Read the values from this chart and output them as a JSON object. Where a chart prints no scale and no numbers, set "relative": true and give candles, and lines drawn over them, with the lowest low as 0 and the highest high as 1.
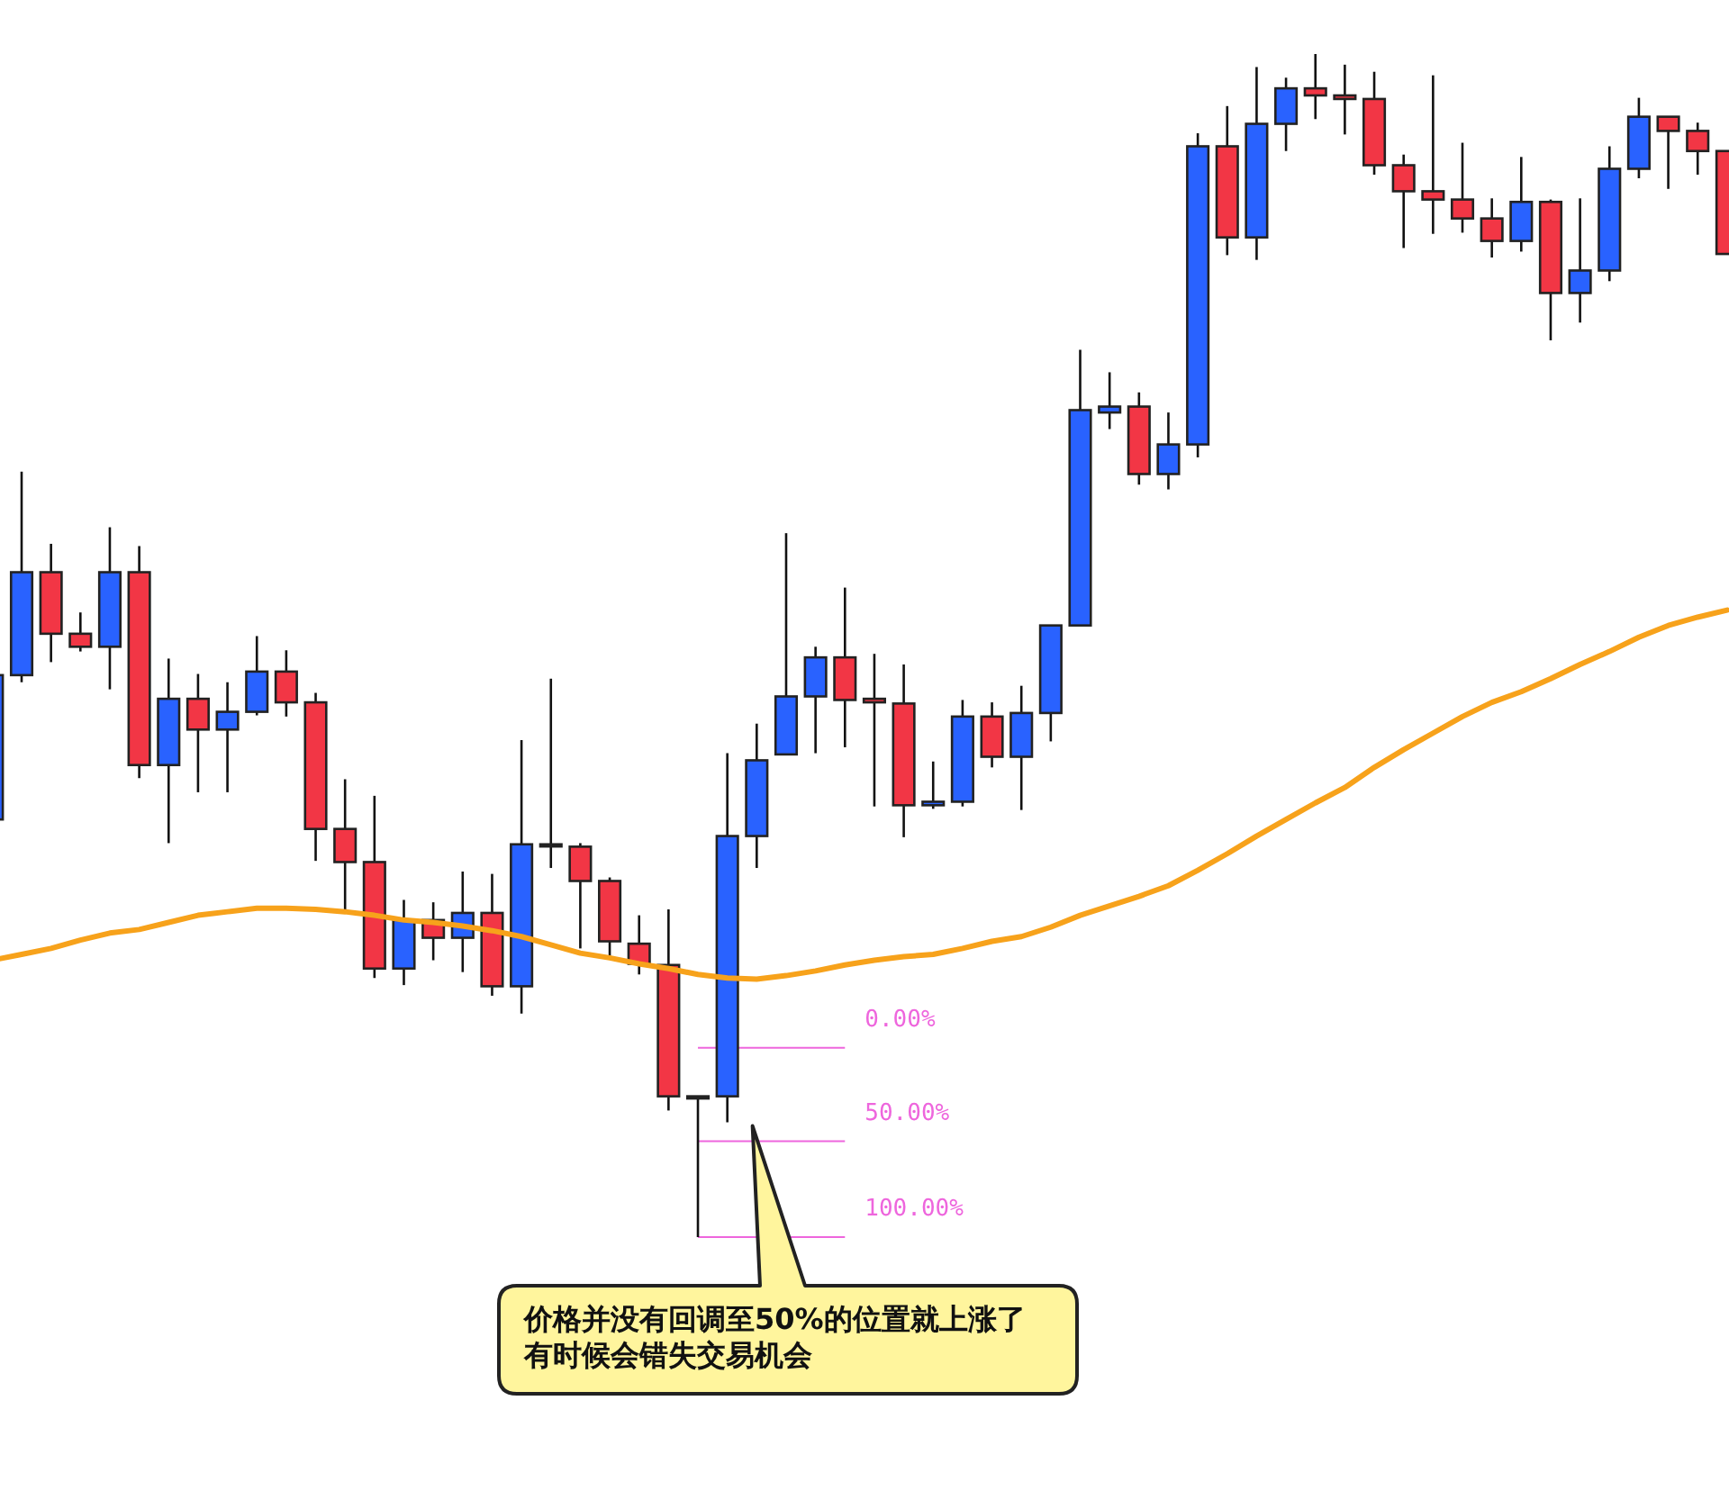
{
  "chart_data": {
    "type": "candlestick",
    "relative": true,
    "categories": [
      null,
      null,
      null,
      null,
      null,
      null,
      null,
      null,
      null,
      null,
      null,
      null,
      null,
      null,
      null,
      null,
      null,
      null,
      null,
      null,
      null,
      null,
      null,
      null,
      null,
      null,
      null,
      null,
      null,
      null,
      null,
      null,
      null,
      null,
      null,
      null,
      null,
      null,
      null,
      null,
      null,
      null,
      null,
      null,
      null,
      null,
      null,
      null,
      null,
      null,
      null,
      null,
      null,
      null,
      null,
      null,
      null,
      null,
      null,
      null
    ],
    "ohlc": [
      [
        0.353,
        0.475,
        0.353,
        0.475
      ],
      [
        0.475,
        0.647,
        0.469,
        0.562
      ],
      [
        0.562,
        0.586,
        0.486,
        0.51
      ],
      [
        0.51,
        0.528,
        0.495,
        0.499
      ],
      [
        0.499,
        0.6,
        0.463,
        0.562
      ],
      [
        0.562,
        0.584,
        0.388,
        0.399
      ],
      [
        0.399,
        0.489,
        0.333,
        0.455
      ],
      [
        0.455,
        0.476,
        0.376,
        0.429
      ],
      [
        0.429,
        0.469,
        0.376,
        0.444
      ],
      [
        0.444,
        0.508,
        0.441,
        0.478
      ],
      [
        0.478,
        0.496,
        0.44,
        0.452
      ],
      [
        0.452,
        0.46,
        0.318,
        0.345
      ],
      [
        0.345,
        0.387,
        0.274,
        0.317
      ],
      [
        0.317,
        0.373,
        0.219,
        0.227
      ],
      [
        0.227,
        0.285,
        0.213,
        0.268
      ],
      [
        0.268,
        0.283,
        0.234,
        0.253
      ],
      [
        0.253,
        0.309,
        0.224,
        0.274
      ],
      [
        0.274,
        0.307,
        0.204,
        0.212
      ],
      [
        0.212,
        0.42,
        0.189,
        0.332
      ],
      [
        0.332,
        0.472,
        0.312,
        0.332
      ],
      [
        0.33,
        0.333,
        0.244,
        0.301
      ],
      [
        0.301,
        0.304,
        0.236,
        0.25
      ],
      [
        0.248,
        0.272,
        0.222,
        0.231
      ],
      [
        0.23,
        0.277,
        0.107,
        0.119
      ],
      [
        0.119,
        0.119,
        0,
        0.119
      ],
      [
        0.119,
        0.409,
        0.097,
        0.339
      ],
      [
        0.339,
        0.434,
        0.312,
        0.403
      ],
      [
        0.408,
        0.595,
        0.408,
        0.457
      ],
      [
        0.457,
        0.499,
        0.409,
        0.49
      ],
      [
        0.49,
        0.549,
        0.414,
        0.454
      ],
      [
        0.455,
        0.493,
        0.364,
        0.452
      ],
      [
        0.451,
        0.484,
        0.338,
        0.365
      ],
      [
        0.365,
        0.402,
        0.362,
        0.368
      ],
      [
        0.368,
        0.454,
        0.364,
        0.44
      ],
      [
        0.44,
        0.452,
        0.397,
        0.406
      ],
      [
        0.406,
        0.466,
        0.361,
        0.443
      ],
      [
        0.443,
        0.517,
        0.419,
        0.517
      ],
      [
        0.517,
        0.75,
        0.517,
        0.699
      ],
      [
        0.697,
        0.731,
        0.683,
        0.702
      ],
      [
        0.702,
        0.714,
        0.636,
        0.645
      ],
      [
        0.645,
        0.697,
        0.632,
        0.67
      ],
      [
        0.67,
        0.933,
        0.659,
        0.922
      ],
      [
        0.922,
        0.956,
        0.83,
        0.845
      ],
      [
        0.845,
        0.989,
        0.826,
        0.941
      ],
      [
        0.941,
        0.98,
        0.918,
        0.971
      ],
      [
        0.971,
        1,
        0.945,
        0.965
      ],
      [
        0.965,
        0.991,
        0.932,
        0.962
      ],
      [
        0.962,
        0.985,
        0.898,
        0.906
      ],
      [
        0.906,
        0.915,
        0.836,
        0.884
      ],
      [
        0.884,
        0.982,
        0.848,
        0.877
      ],
      [
        0.877,
        0.925,
        0.849,
        0.861
      ],
      [
        0.861,
        0.878,
        0.828,
        0.842
      ],
      [
        0.842,
        0.913,
        0.833,
        0.875
      ],
      [
        0.875,
        0.877,
        0.758,
        0.798
      ],
      [
        0.798,
        0.878,
        0.773,
        0.817
      ],
      [
        0.817,
        0.922,
        0.808,
        0.903
      ],
      [
        0.903,
        0.963,
        0.895,
        0.947
      ],
      [
        0.947,
        0.947,
        0.886,
        0.935
      ],
      [
        0.935,
        0.942,
        0.898,
        0.918
      ],
      [
        0.918,
        0.918,
        0.831,
        0.831
      ]
    ],
    "colors": [
      "#2962ff",
      "#2962ff",
      "#f23645",
      "#f23645",
      "#2962ff",
      "#f23645",
      "#2962ff",
      "#f23645",
      "#2962ff",
      "#2962ff",
      "#f23645",
      "#f23645",
      "#f23645",
      "#f23645",
      "#2962ff",
      "#f23645",
      "#2962ff",
      "#f23645",
      "#2962ff",
      "#333333",
      "#f23645",
      "#f23645",
      "#f23645",
      "#f23645",
      "#333333",
      "#2962ff",
      "#2962ff",
      "#2962ff",
      "#2962ff",
      "#f23645",
      "#f23645",
      "#f23645",
      "#2962ff",
      "#2962ff",
      "#f23645",
      "#2962ff",
      "#2962ff",
      "#2962ff",
      "#2962ff",
      "#f23645",
      "#2962ff",
      "#2962ff",
      "#f23645",
      "#2962ff",
      "#2962ff",
      "#f23645",
      "#f23645",
      "#f23645",
      "#f23645",
      "#f23645",
      "#f23645",
      "#f23645",
      "#2962ff",
      "#f23645",
      "#2962ff",
      "#2962ff",
      "#2962ff",
      "#f23645",
      "#f23645",
      "#f23645"
    ],
    "series": [
      {
        "type": "line",
        "color": "#f7a21b",
        "values": [
          0.234,
          0.239,
          0.244,
          0.251,
          0.257,
          0.26,
          0.266,
          0.272,
          0.275,
          0.278,
          0.278,
          0.277,
          0.275,
          0.272,
          0.268,
          0.266,
          0.263,
          0.259,
          0.254,
          0.247,
          0.24,
          0.236,
          0.231,
          0.227,
          0.222,
          0.219,
          0.218,
          0.221,
          0.225,
          0.23,
          0.234,
          0.237,
          0.239,
          0.244,
          0.25,
          0.254,
          0.262,
          0.272,
          0.28,
          0.288,
          0.297,
          0.31,
          0.324,
          0.339,
          0.353,
          0.367,
          0.38,
          0.397,
          0.412,
          0.426,
          0.44,
          0.452,
          0.461,
          0.472,
          0.484,
          0.495,
          0.507,
          0.517,
          0.524,
          0.53
        ]
      }
    ],
    "ref_lines": [
      {
        "axis": "y",
        "value": 0.16,
        "color": "#ee66dd"
      },
      {
        "axis": "y",
        "value": 0.081,
        "color": "#ee66dd"
      },
      {
        "axis": "y",
        "value": 0,
        "color": "#ee66dd"
      }
    ],
    "annotations": [
      "0.00%",
      "50.00%",
      "100.00%",
      "价格并没有回调至50%的位置就上涨了有时候会错失交易机会"
    ]
  }
}
